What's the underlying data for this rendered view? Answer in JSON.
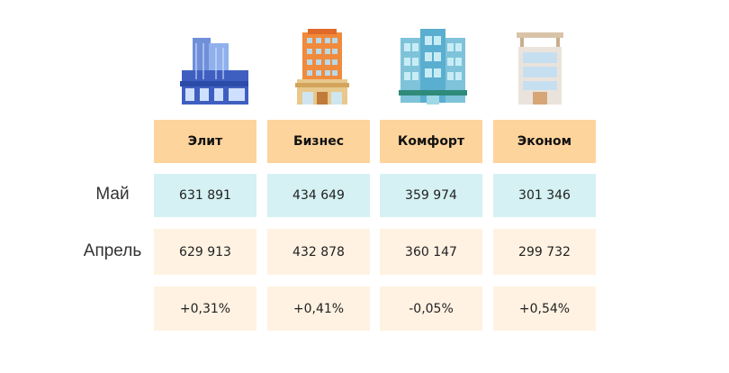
{
  "table": {
    "columns": [
      "Элит",
      "Бизнес",
      "Комфорт",
      "Эконом"
    ],
    "rows": [
      {
        "label": "Май",
        "cells": [
          "631 891",
          "434 649",
          "359 974",
          "301 346"
        ]
      },
      {
        "label": "Апрель",
        "cells": [
          "629 913",
          "432 878",
          "360 147",
          "299 732"
        ]
      },
      {
        "cells": [
          "+0,31%",
          "+0,41%",
          "-0,05%",
          "+0,54%"
        ]
      }
    ]
  }
}
